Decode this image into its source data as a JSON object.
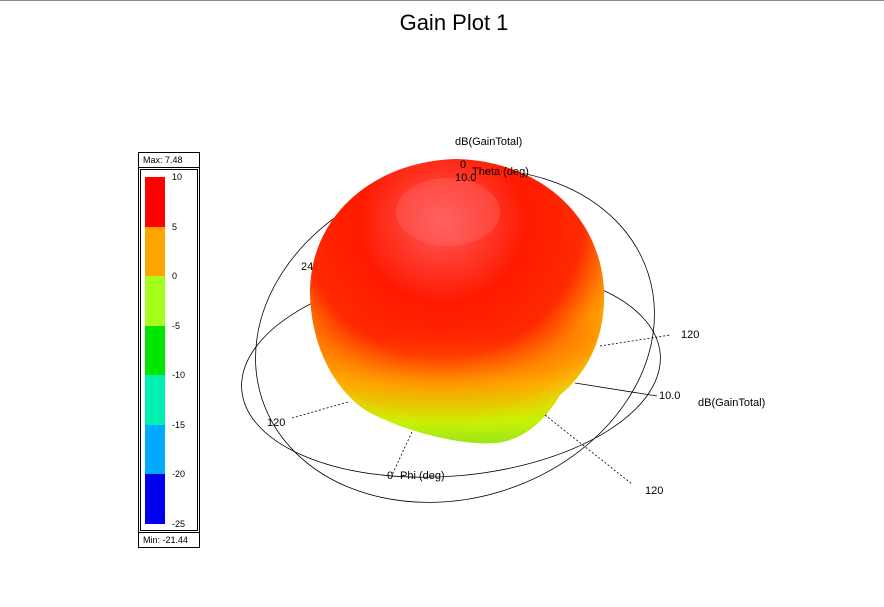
{
  "chart_data": {
    "type": "3d-radiation-pattern",
    "title": "Gain Plot 1",
    "quantity": "dB(GainTotal)",
    "colorbar": {
      "max_label": "Max: 7.48",
      "min_label": "Min: -21.44",
      "max": 7.48,
      "min": -21.44,
      "ticks": [
        "10",
        "5",
        "0",
        "-5",
        "-10",
        "-15",
        "-20",
        "-25"
      ],
      "bands": [
        {
          "from": 5,
          "to": 10,
          "color": "#ff0000"
        },
        {
          "from": 0,
          "to": 5,
          "color": "#ffa500"
        },
        {
          "from": -5,
          "to": 0,
          "color": "#a6ff1a"
        },
        {
          "from": -10,
          "to": -5,
          "color": "#00e600"
        },
        {
          "from": -15,
          "to": -10,
          "color": "#00f0b4"
        },
        {
          "from": -20,
          "to": -15,
          "color": "#00aaff"
        },
        {
          "from": -25,
          "to": -20,
          "color": "#0000f0"
        }
      ]
    },
    "axes": {
      "gain_axis_label": "dB(GainTotal)",
      "gain_axis_top_label": "dB(GainTotal)",
      "theta_label": "Theta (deg)",
      "phi_label": "Phi (deg)",
      "zero_label": "0",
      "phi_zero_label": "0",
      "ring_value": "10.0",
      "ring_value_top": "10.0",
      "angle_labels": [
        "120",
        "120",
        "120",
        "24"
      ]
    }
  }
}
